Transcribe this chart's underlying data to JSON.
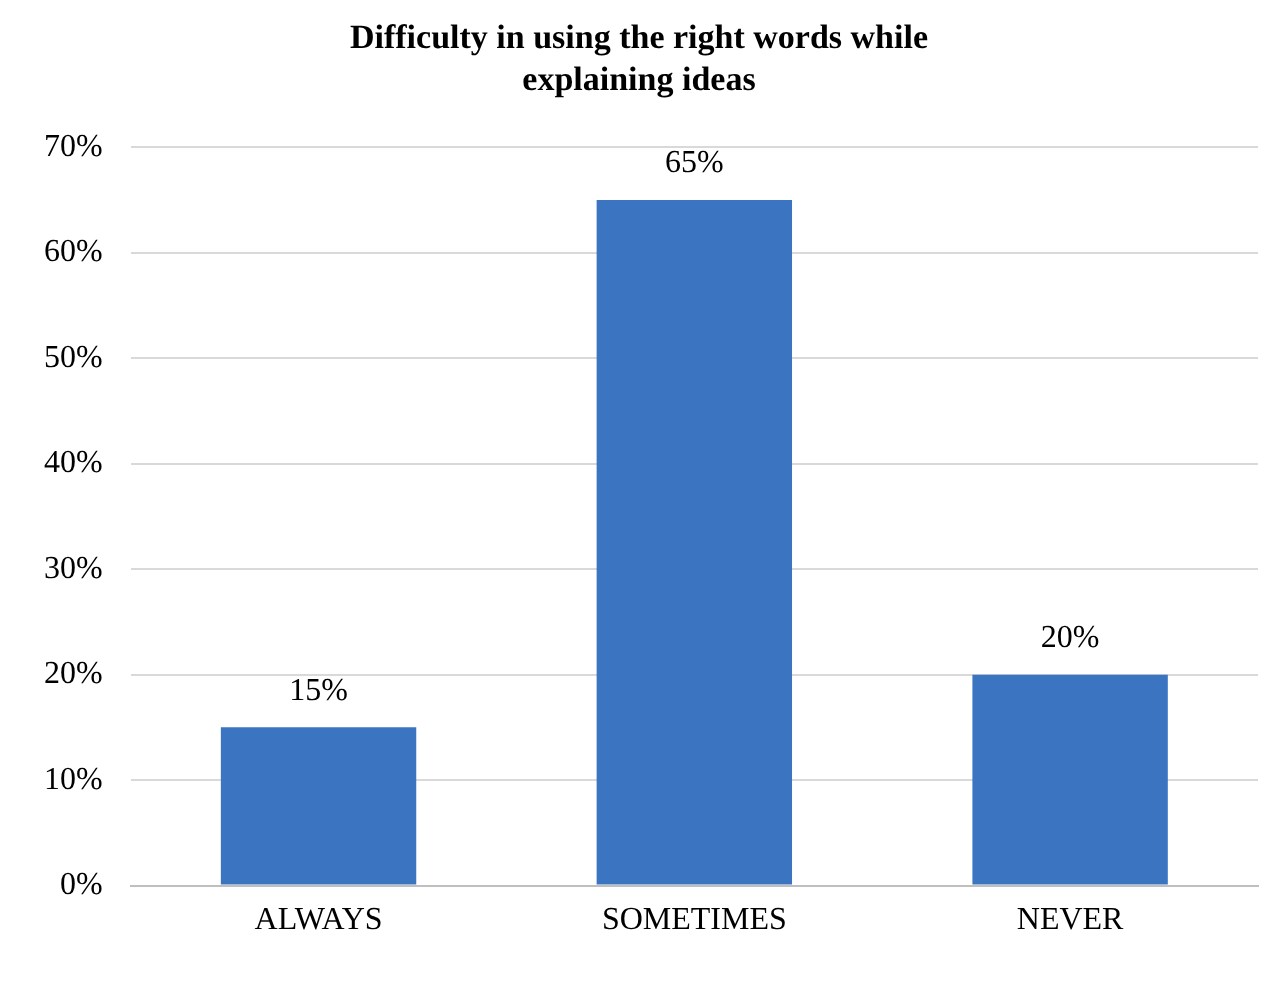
{
  "chart_data": {
    "type": "bar",
    "title": "Difficulty in using the right words while explaining ideas",
    "categories": [
      "ALWAYS",
      "SOMETIMES",
      "NEVER"
    ],
    "values": [
      15,
      65,
      20
    ],
    "value_labels": [
      "15%",
      "65%",
      "20%"
    ],
    "color": "#3b74c1",
    "ylim": [
      0,
      70
    ],
    "yticks": [
      {
        "value": 0,
        "label": "0%"
      },
      {
        "value": 10,
        "label": "10%"
      },
      {
        "value": 20,
        "label": "20%"
      },
      {
        "value": 30,
        "label": "30%"
      },
      {
        "value": 40,
        "label": "40%"
      },
      {
        "value": 50,
        "label": "50%"
      },
      {
        "value": 60,
        "label": "60%"
      },
      {
        "value": 70,
        "label": "70%"
      }
    ],
    "grid": "y",
    "legend": false
  }
}
